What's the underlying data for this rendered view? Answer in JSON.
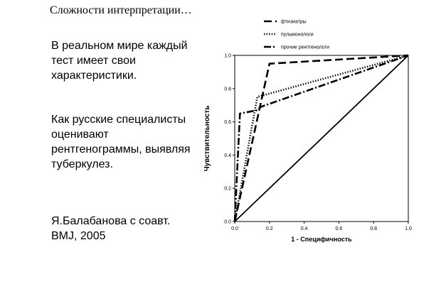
{
  "slide": {
    "title": "Сложности интерпретации…",
    "paragraphs": [
      "В реальном мире каждый тест имеет свои характеристики.",
      "Как русские специалисты оценивают рентгенограммы, выявляя туберкулез.",
      "Я.Балабанова с соавт. BMJ, 2005"
    ]
  },
  "chart_data": {
    "type": "line",
    "title": "",
    "xlabel": "1 - Специфичность",
    "ylabel": "Чувствительность",
    "xlim": [
      0,
      1
    ],
    "ylim": [
      0,
      1
    ],
    "xticks": [
      "0.0",
      "0.2",
      "0.4",
      "0.6",
      "0.8",
      "1.0"
    ],
    "yticks": [
      "0.0",
      "0.2",
      "0.4",
      "0.6",
      "0.8",
      "1.0"
    ],
    "grid": false,
    "legend": "top",
    "diagonal": [
      [
        0,
        0
      ],
      [
        1,
        1
      ]
    ],
    "series": [
      {
        "name": "фтизиатры",
        "style": "dashed",
        "x": [
          0,
          0.2,
          1.0
        ],
        "y": [
          0,
          0.95,
          1.0
        ]
      },
      {
        "name": "пульмонологи",
        "style": "dotted",
        "x": [
          0,
          0.13,
          1.0
        ],
        "y": [
          0,
          0.75,
          1.0
        ]
      },
      {
        "name": "прочие рентгенологи",
        "style": "dash-dot",
        "x": [
          0,
          0.03,
          0.13,
          0.15,
          1.0
        ],
        "y": [
          0,
          0.65,
          0.67,
          0.69,
          1.0
        ]
      }
    ]
  }
}
